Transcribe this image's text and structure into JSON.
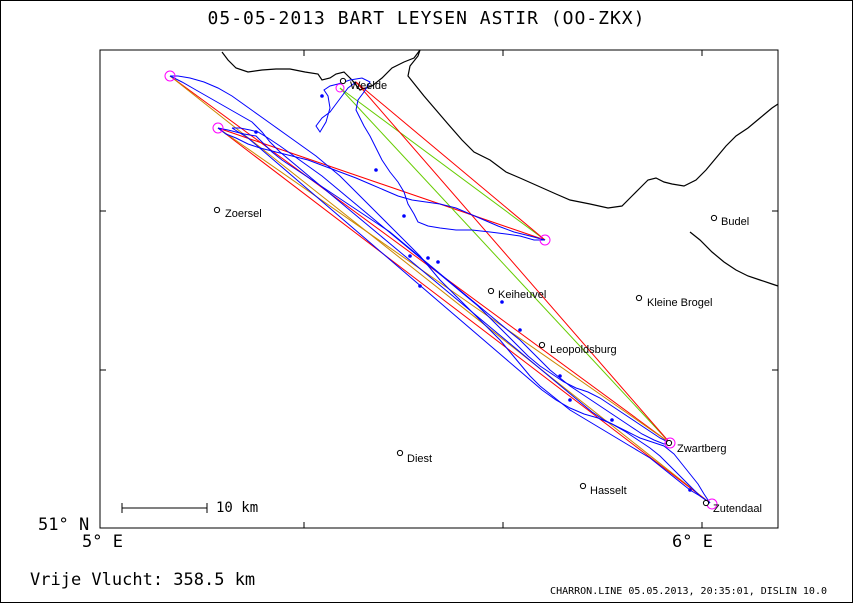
{
  "title": "05-05-2013   BART   LEYSEN   ASTIR (OO-ZKX)",
  "axes": {
    "lat_label": "51° N",
    "lon_left": "5° E",
    "lon_right": "6° E"
  },
  "scale_bar": {
    "label": "10 km"
  },
  "footer": {
    "distance": "Vrije Vlucht:  358.5 km",
    "credit": "CHARRON.LINE 05.05.2013, 20:35:01, DISLIN 10.0"
  },
  "places": [
    {
      "name": "Weelde"
    },
    {
      "name": "Zoersel"
    },
    {
      "name": "Budel"
    },
    {
      "name": "Keiheuvel"
    },
    {
      "name": "Kleine Brogel"
    },
    {
      "name": "Leopoldsburg"
    },
    {
      "name": "Zwartberg"
    },
    {
      "name": "Diest"
    },
    {
      "name": "Hasselt"
    },
    {
      "name": "Zutendaal"
    }
  ],
  "colors": {
    "track": "#0000ff",
    "leg_red": "#ff0000",
    "leg_orange": "#cc8800",
    "leg_green": "#66cc00",
    "turnpoint": "#ff00ff",
    "border": "#000000"
  }
}
